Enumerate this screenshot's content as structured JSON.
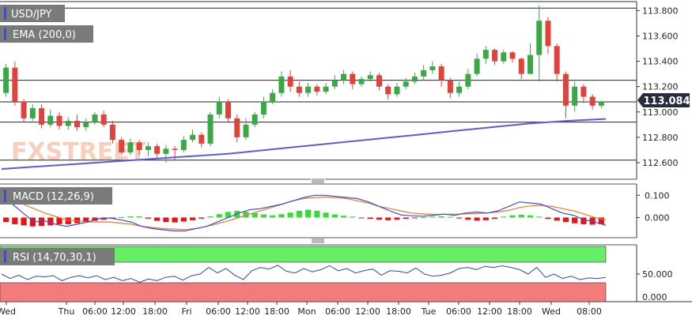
{
  "symbol_badge": "USD/JPY",
  "ema_badge": "EMA (200,0)",
  "macd_badge": "MACD (12,26,9)",
  "rsi_badge": "RSI (14,70,30,1)",
  "watermark": "FXSTREET",
  "current_price": "113.084",
  "colors": {
    "up": "#3aa845",
    "down": "#e0433b",
    "ema": "#5b5be0",
    "macd_line": "#3a4fd8",
    "signal_line": "#f07a26",
    "hist_pos": "#33dd33",
    "hist_neg": "#ee1111",
    "rsi_line": "#2b44c8",
    "rsi_ob": "#66ee66",
    "rsi_os": "#f47b7b",
    "badge": "#7a7a7a",
    "price_tag": "#262b3d"
  },
  "chart_data": [
    {
      "type": "candlestick",
      "title": "USD/JPY",
      "ylim": [
        112.5,
        113.84
      ],
      "y_ticks": [
        "113.800",
        "113.600",
        "113.400",
        "113.200",
        "113.000",
        "112.800",
        "112.600"
      ],
      "y_tick_values": [
        113.8,
        113.6,
        113.4,
        113.2,
        113.0,
        112.8,
        112.6
      ],
      "x_ticks": [
        "Wed",
        "Thu",
        "06:00",
        "12:00",
        "18:00",
        "Fri",
        "06:00",
        "12:00",
        "18:00",
        "Mon",
        "06:00",
        "12:00",
        "18:00",
        "Tue",
        "06:00",
        "12:00",
        "18:00",
        "Wed",
        "08:00"
      ],
      "horizontal_levels": [
        113.82,
        113.25,
        113.08,
        112.92,
        112.62
      ],
      "ema_200": [
        112.55,
        112.57,
        112.59,
        112.61,
        112.63,
        112.65,
        112.67,
        112.7,
        112.73,
        112.76,
        112.79,
        112.82,
        112.85,
        112.88,
        112.91,
        112.93,
        112.945
      ],
      "candles": [
        [
          113.15,
          113.35,
          113.38,
          113.12
        ],
        [
          113.35,
          113.08,
          113.4,
          113.05
        ],
        [
          113.08,
          112.95,
          113.1,
          112.92
        ],
        [
          112.95,
          113.03,
          113.06,
          112.93
        ],
        [
          113.03,
          112.9,
          113.06,
          112.87
        ],
        [
          112.9,
          112.97,
          113.02,
          112.88
        ],
        [
          112.97,
          112.89,
          113.0,
          112.86
        ],
        [
          112.89,
          112.93,
          112.96,
          112.86
        ],
        [
          112.93,
          112.88,
          112.98,
          112.85
        ],
        [
          112.88,
          112.92,
          112.95,
          112.85
        ],
        [
          112.92,
          112.98,
          113.0,
          112.9
        ],
        [
          112.98,
          112.9,
          113.01,
          112.88
        ],
        [
          112.9,
          112.78,
          112.93,
          112.75
        ],
        [
          112.78,
          112.68,
          112.8,
          112.66
        ],
        [
          112.68,
          112.76,
          112.79,
          112.66
        ],
        [
          112.76,
          112.7,
          112.78,
          112.66
        ],
        [
          112.7,
          112.73,
          112.76,
          112.65
        ],
        [
          112.73,
          112.67,
          112.75,
          112.63
        ],
        [
          112.67,
          112.71,
          112.74,
          112.6
        ],
        [
          112.71,
          112.7,
          112.73,
          112.62
        ],
        [
          112.7,
          112.78,
          112.81,
          112.68
        ],
        [
          112.78,
          112.82,
          112.86,
          112.76
        ],
        [
          112.82,
          112.75,
          112.84,
          112.72
        ],
        [
          112.75,
          112.98,
          113.0,
          112.73
        ],
        [
          112.98,
          113.08,
          113.12,
          112.95
        ],
        [
          113.08,
          112.95,
          113.1,
          112.92
        ],
        [
          112.95,
          112.8,
          112.98,
          112.76
        ],
        [
          112.8,
          112.9,
          112.95,
          112.78
        ],
        [
          112.9,
          112.98,
          113.0,
          112.88
        ],
        [
          112.98,
          113.08,
          113.12,
          112.95
        ],
        [
          113.08,
          113.15,
          113.18,
          113.06
        ],
        [
          113.15,
          113.28,
          113.32,
          113.12
        ],
        [
          113.28,
          113.2,
          113.33,
          113.16
        ],
        [
          113.2,
          113.15,
          113.24,
          113.12
        ],
        [
          113.15,
          113.2,
          113.23,
          113.12
        ],
        [
          113.2,
          113.16,
          113.22,
          113.13
        ],
        [
          113.16,
          113.2,
          113.23,
          113.14
        ],
        [
          113.2,
          113.25,
          113.29,
          113.18
        ],
        [
          113.25,
          113.3,
          113.33,
          113.22
        ],
        [
          113.3,
          113.22,
          113.32,
          113.18
        ],
        [
          113.22,
          113.26,
          113.28,
          113.2
        ],
        [
          113.26,
          113.29,
          113.32,
          113.24
        ],
        [
          113.29,
          113.2,
          113.31,
          113.17
        ],
        [
          113.2,
          113.14,
          113.22,
          113.1
        ],
        [
          113.14,
          113.2,
          113.23,
          113.12
        ],
        [
          113.2,
          113.24,
          113.27,
          113.18
        ],
        [
          113.24,
          113.28,
          113.31,
          113.22
        ],
        [
          113.28,
          113.33,
          113.37,
          113.25
        ],
        [
          113.33,
          113.36,
          113.4,
          113.3
        ],
        [
          113.36,
          113.25,
          113.38,
          113.2
        ],
        [
          113.25,
          113.15,
          113.27,
          113.11
        ],
        [
          113.15,
          113.2,
          113.24,
          113.12
        ],
        [
          113.2,
          113.3,
          113.34,
          113.18
        ],
        [
          113.3,
          113.42,
          113.46,
          113.28
        ],
        [
          113.42,
          113.49,
          113.52,
          113.38
        ],
        [
          113.49,
          113.4,
          113.5,
          113.37
        ],
        [
          113.4,
          113.47,
          113.49,
          113.38
        ],
        [
          113.47,
          113.42,
          113.48,
          113.39
        ],
        [
          113.42,
          113.3,
          113.43,
          113.26
        ],
        [
          113.3,
          113.45,
          113.54,
          113.3
        ],
        [
          113.45,
          113.72,
          113.84,
          113.24
        ],
        [
          113.72,
          113.52,
          113.75,
          113.46
        ],
        [
          113.52,
          113.3,
          113.54,
          113.24
        ],
        [
          113.3,
          113.05,
          113.32,
          112.95
        ],
        [
          113.05,
          113.2,
          113.24,
          113.0
        ],
        [
          113.2,
          113.12,
          113.22,
          113.07
        ],
        [
          113.12,
          113.05,
          113.14,
          113.02
        ],
        [
          113.05,
          113.084,
          113.09,
          113.03
        ]
      ],
      "value_unit": "JPY"
    },
    {
      "type": "bar",
      "title": "MACD (12,26,9)",
      "ylim": [
        -0.08,
        0.14
      ],
      "y_ticks": [
        "0.100",
        "0.000"
      ],
      "y_tick_values": [
        0.1,
        0.0
      ],
      "histogram": [
        -0.02,
        -0.03,
        -0.035,
        -0.04,
        -0.038,
        -0.035,
        -0.03,
        -0.03,
        -0.025,
        -0.02,
        -0.015,
        -0.01,
        -0.005,
        0.002,
        0.005,
        0.005,
        -0.005,
        -0.015,
        -0.02,
        -0.022,
        -0.018,
        -0.012,
        -0.005,
        0.005,
        0.015,
        0.025,
        0.03,
        0.026,
        0.02,
        0.014,
        0.01,
        0.015,
        0.022,
        0.03,
        0.035,
        0.03,
        0.022,
        0.014,
        0.008,
        0.004,
        -0.002,
        -0.006,
        -0.01,
        -0.012,
        -0.01,
        -0.006,
        -0.003,
        0.002,
        0.004,
        0.006,
        0.003,
        -0.004,
        -0.01,
        -0.014,
        -0.012,
        -0.006,
        0.004,
        0.01,
        0.013,
        0.01,
        0.004,
        -0.006,
        -0.014,
        -0.02,
        -0.026,
        -0.03,
        -0.032,
        -0.03
      ],
      "macd": [
        0.08,
        0.06,
        0.02,
        -0.02,
        -0.015,
        -0.03,
        -0.04,
        -0.03,
        -0.02,
        -0.005,
        -0.002,
        -0.01,
        -0.02,
        -0.04,
        -0.05,
        -0.055,
        -0.06,
        -0.06,
        -0.05,
        -0.04,
        -0.02,
        0.0,
        0.02,
        0.035,
        0.04,
        0.05,
        0.06,
        0.075,
        0.09,
        0.1,
        0.1,
        0.095,
        0.09,
        0.085,
        0.07,
        0.05,
        0.03,
        0.012,
        0.008,
        0.006,
        0.01,
        0.015,
        0.01,
        0.02,
        0.025,
        0.02,
        0.03,
        0.05,
        0.07,
        0.065,
        0.06,
        0.04,
        0.02,
        0.01,
        -0.01,
        -0.02,
        -0.035
      ],
      "signal": [
        0.1,
        0.08,
        0.06,
        0.04,
        0.02,
        0.005,
        -0.01,
        -0.015,
        -0.02,
        -0.02,
        -0.02,
        -0.025,
        -0.03,
        -0.04,
        -0.045,
        -0.05,
        -0.052,
        -0.054,
        -0.05,
        -0.04,
        -0.028,
        -0.015,
        0.0,
        0.015,
        0.03,
        0.045,
        0.06,
        0.075,
        0.085,
        0.09,
        0.092,
        0.09,
        0.085,
        0.075,
        0.065,
        0.05,
        0.04,
        0.03,
        0.02,
        0.016,
        0.014,
        0.015,
        0.015,
        0.016,
        0.018,
        0.02,
        0.025,
        0.032,
        0.045,
        0.052,
        0.055,
        0.05,
        0.04,
        0.03,
        0.015,
        0.0,
        -0.01
      ]
    },
    {
      "type": "line",
      "title": "RSI (14,70,30,1)",
      "ylim": [
        0,
        100
      ],
      "y_ticks": [
        "50.000",
        "0.000"
      ],
      "y_tick_values": [
        50,
        0
      ],
      "overbought": 70,
      "oversold": 30,
      "rsi": [
        50,
        42,
        48,
        40,
        46,
        45,
        47,
        38,
        44,
        47,
        43,
        47,
        40,
        44,
        38,
        42,
        35,
        41,
        38,
        44,
        46,
        39,
        47,
        50,
        62,
        52,
        60,
        48,
        40,
        56,
        62,
        59,
        66,
        55,
        52,
        60,
        54,
        58,
        65,
        56,
        60,
        52,
        56,
        59,
        48,
        56,
        55,
        52,
        61,
        50,
        46,
        48,
        52,
        60,
        62,
        58,
        64,
        62,
        65,
        62,
        58,
        50,
        62,
        44,
        50,
        42,
        46,
        40,
        43,
        42,
        44
      ]
    }
  ]
}
